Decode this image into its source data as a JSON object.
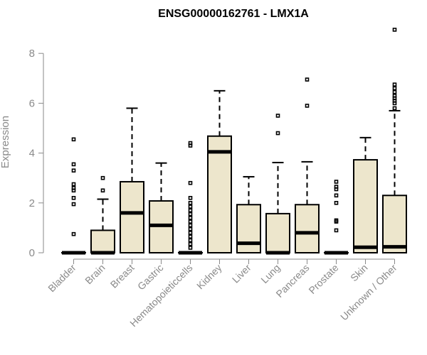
{
  "chart_data": {
    "type": "boxplot",
    "title": "ENSG00000162761 - LMX1A",
    "xlabel": "",
    "ylabel": "Expression",
    "ylim": [
      0,
      9
    ],
    "yticks": [
      0,
      2,
      4,
      6,
      8
    ],
    "ytick_labels": [
      "0",
      "2",
      "4",
      "6",
      "8"
    ],
    "box_color": "#ede6cc",
    "categories": [
      "Bladder",
      "Brain",
      "Breast",
      "Gastric",
      "Hematopoieticcells",
      "Kidney",
      "Liver",
      "Lung",
      "Pancreas",
      "Prostate",
      "Skin",
      "Unknown / Other"
    ],
    "boxes": [
      {
        "q1": 0,
        "median": 0,
        "q3": 0,
        "low": 0,
        "high": 0,
        "outliers": [
          0.75,
          1.95,
          2.2,
          2.5,
          2.6,
          2.75,
          3.3,
          3.55,
          4.55
        ]
      },
      {
        "q1": 0,
        "median": 0,
        "q3": 0.9,
        "low": 0,
        "high": 2.15,
        "outliers": [
          2.5,
          3.0
        ]
      },
      {
        "q1": 0,
        "median": 1.6,
        "q3": 2.85,
        "low": 0,
        "high": 5.8,
        "outliers": []
      },
      {
        "q1": 0,
        "median": 1.1,
        "q3": 2.08,
        "low": 0,
        "high": 3.6,
        "outliers": []
      },
      {
        "q1": 0,
        "median": 0,
        "q3": 0,
        "low": 0,
        "high": 0,
        "outliers": [
          0.2,
          0.35,
          0.5,
          0.65,
          0.8,
          0.95,
          1.1,
          1.25,
          1.4,
          1.55,
          1.7,
          1.85,
          2.0,
          2.2,
          2.8,
          4.3,
          4.4
        ]
      },
      {
        "q1": 0,
        "median": 4.05,
        "q3": 4.68,
        "low": 0,
        "high": 6.5,
        "outliers": []
      },
      {
        "q1": 0,
        "median": 0.38,
        "q3": 1.93,
        "low": 0,
        "high": 3.05,
        "outliers": []
      },
      {
        "q1": 0,
        "median": 0,
        "q3": 1.57,
        "low": 0,
        "high": 3.62,
        "outliers": [
          4.8,
          5.5
        ]
      },
      {
        "q1": 0,
        "median": 0.8,
        "q3": 1.93,
        "low": 0,
        "high": 3.65,
        "outliers": [
          5.9,
          6.95
        ]
      },
      {
        "q1": 0,
        "median": 0,
        "q3": 0,
        "low": 0,
        "high": 0,
        "outliers": [
          0.9,
          1.25,
          1.3,
          2.0,
          2.3,
          2.55,
          2.65,
          2.85
        ]
      },
      {
        "q1": 0,
        "median": 0.22,
        "q3": 3.73,
        "low": 0,
        "high": 4.62,
        "outliers": []
      },
      {
        "q1": 0,
        "median": 0.24,
        "q3": 2.3,
        "low": 0,
        "high": 5.7,
        "outliers": [
          5.8,
          6.0,
          6.1,
          6.2,
          6.3,
          6.45,
          6.6,
          6.75,
          8.95
        ]
      }
    ]
  }
}
